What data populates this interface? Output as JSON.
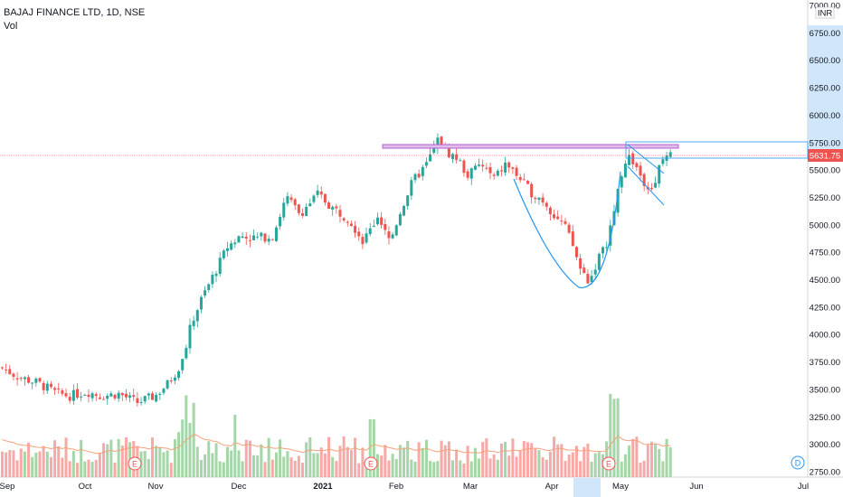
{
  "header": {
    "symbol_line": "BAJAJ FINANCE LTD, 1D, NSE",
    "volume_label": "Vol"
  },
  "price_axis": {
    "currency": "INR",
    "current_price": "5631.75",
    "ticks": [
      "7000.00",
      "6750.00",
      "6500.00",
      "6250.00",
      "6000.00",
      "5750.00",
      "5500.00",
      "5250.00",
      "5000.00",
      "4750.00",
      "4500.00",
      "4250.00",
      "4000.00",
      "3750.00",
      "3500.00",
      "3250.00",
      "3000.00",
      "2750.00"
    ]
  },
  "time_axis": {
    "labels": [
      "Sep",
      "Oct",
      "Nov",
      "Dec",
      "2021",
      "Feb",
      "Mar",
      "Apr",
      "May",
      "Jun",
      "Jul"
    ]
  },
  "event_markers": {
    "earnings": [
      "E",
      "E",
      "E"
    ],
    "dividend": "D"
  },
  "colors": {
    "up": "#26a69a",
    "down": "#ef5350",
    "vol_up": "#a5d6a7",
    "vol_down": "#f7a9a7",
    "ma": "#f4a27a",
    "resistance": "#b05fd6",
    "pattern": "#2196f3",
    "price_line": "#ef5350",
    "axis_highlight": "#d0e7fb"
  },
  "chart_data": {
    "type": "candlestick",
    "title": "BAJAJ FINANCE LTD, 1D, NSE",
    "currency": "INR",
    "y_range": [
      2750,
      7000
    ],
    "last_price": 5631.75,
    "close_series_approx": {
      "dates": [
        "2020-08-31",
        "2020-09-15",
        "2020-10-01",
        "2020-10-15",
        "2020-11-02",
        "2020-11-10",
        "2020-11-20",
        "2020-12-01",
        "2020-12-15",
        "2021-01-01",
        "2021-01-12",
        "2021-01-25",
        "2021-02-05",
        "2021-02-15",
        "2021-03-01",
        "2021-03-15",
        "2021-04-01",
        "2021-04-12",
        "2021-04-20",
        "2021-05-03",
        "2021-05-10",
        "2021-05-20"
      ],
      "close": [
        3700,
        3520,
        3460,
        3370,
        3440,
        4100,
        4700,
        4950,
        4900,
        5240,
        5000,
        4800,
        5600,
        5650,
        5450,
        5600,
        5150,
        4550,
        4500,
        5450,
        5400,
        5632
      ]
    },
    "annotations": {
      "resistance_zone": [
        5650,
        5700
      ],
      "pattern": "cup and handle"
    }
  }
}
